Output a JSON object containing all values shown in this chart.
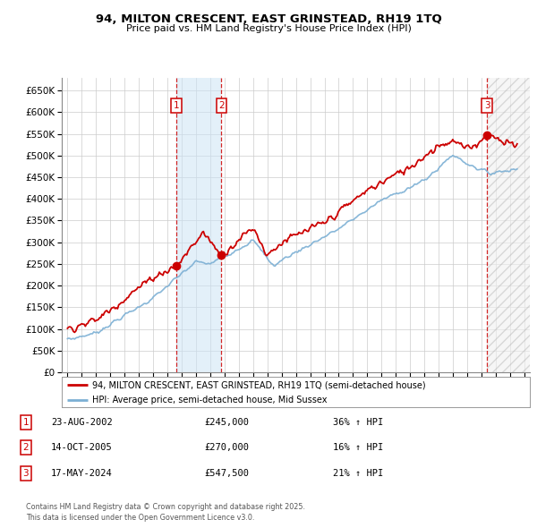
{
  "title": "94, MILTON CRESCENT, EAST GRINSTEAD, RH19 1TQ",
  "subtitle": "Price paid vs. HM Land Registry's House Price Index (HPI)",
  "ylim": [
    0,
    680000
  ],
  "yticks": [
    0,
    50000,
    100000,
    150000,
    200000,
    250000,
    300000,
    350000,
    400000,
    450000,
    500000,
    550000,
    600000,
    650000
  ],
  "xlim_start": 1994.6,
  "xlim_end": 2027.4,
  "bg_color": "#ffffff",
  "grid_color": "#cccccc",
  "hpi_color": "#7bafd4",
  "price_color": "#cc0000",
  "transactions": [
    {
      "date_num": 2002.645,
      "price": 245000,
      "label": "1"
    },
    {
      "date_num": 2005.788,
      "price": 270000,
      "label": "2"
    },
    {
      "date_num": 2024.38,
      "price": 547500,
      "label": "3"
    }
  ],
  "legend_line1": "94, MILTON CRESCENT, EAST GRINSTEAD, RH19 1TQ (semi-detached house)",
  "legend_line2": "HPI: Average price, semi-detached house, Mid Sussex",
  "table_rows": [
    {
      "num": "1",
      "date": "23-AUG-2002",
      "price": "£245,000",
      "hpi": "36% ↑ HPI"
    },
    {
      "num": "2",
      "date": "14-OCT-2005",
      "price": "£270,000",
      "hpi": "16% ↑ HPI"
    },
    {
      "num": "3",
      "date": "17-MAY-2024",
      "price": "£547,500",
      "hpi": "21% ↑ HPI"
    }
  ],
  "footer": "Contains HM Land Registry data © Crown copyright and database right 2025.\nThis data is licensed under the Open Government Licence v3.0."
}
